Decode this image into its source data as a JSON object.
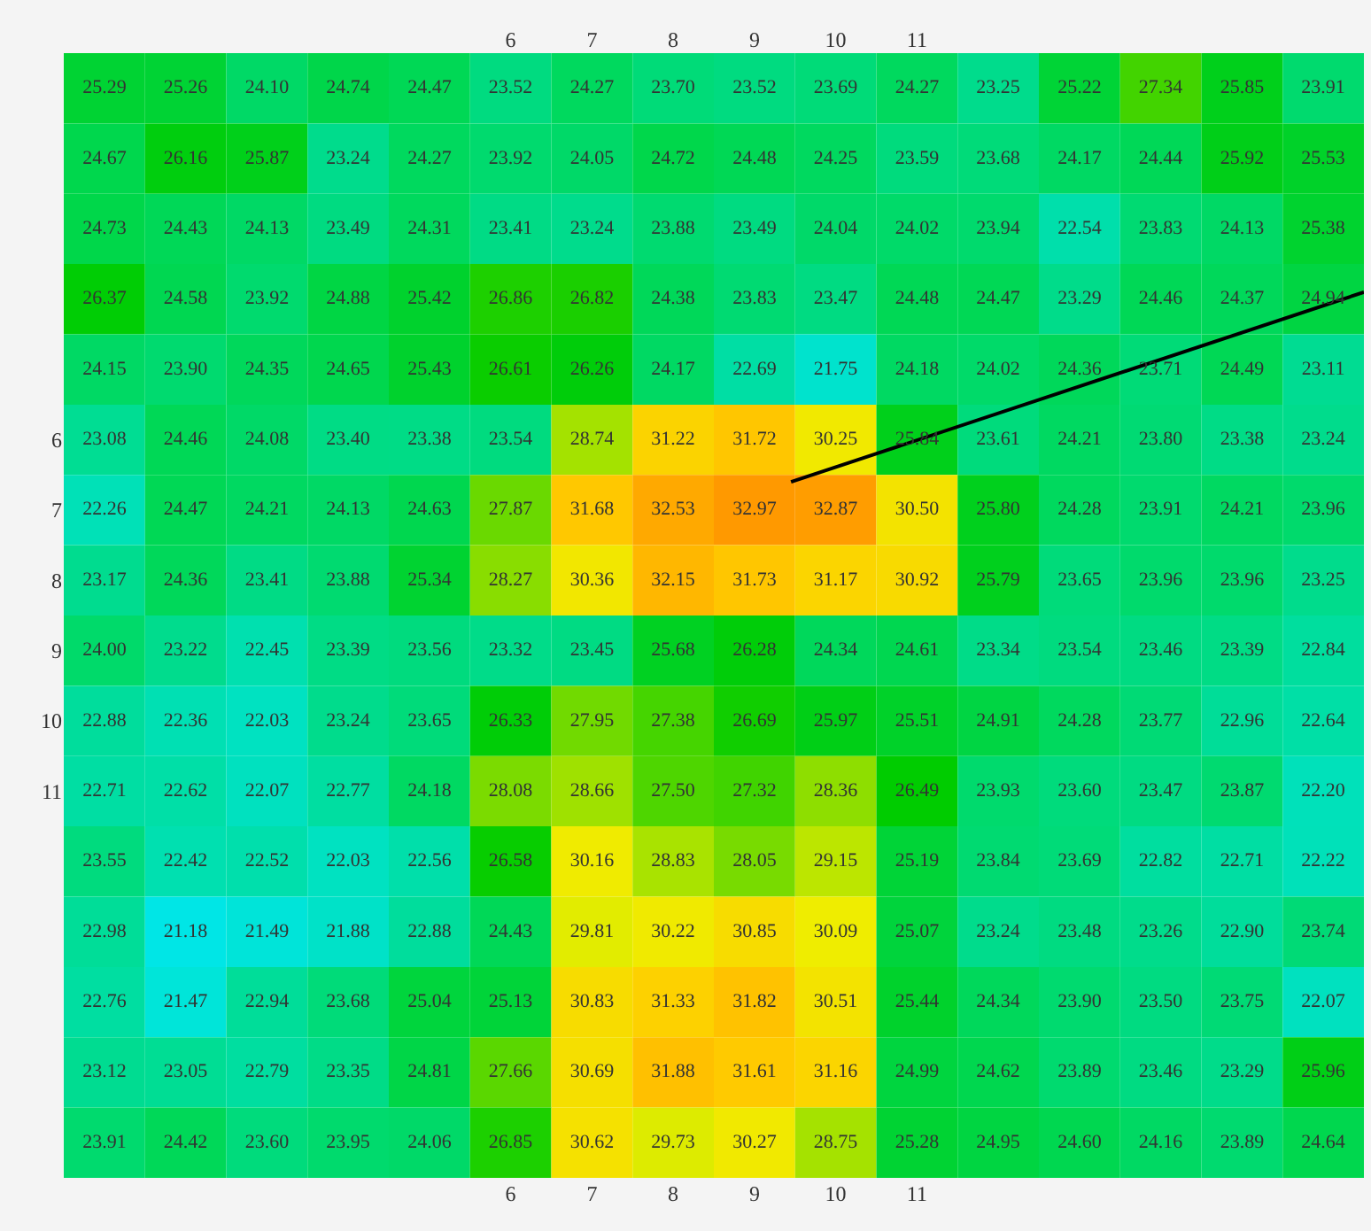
{
  "chart_data": {
    "type": "heatmap",
    "categories": [
      null,
      null,
      null,
      null,
      null,
      "6",
      "7",
      "8",
      "9",
      "10",
      "11",
      null,
      null,
      null,
      null,
      null
    ],
    "y_categories": [
      null,
      null,
      null,
      null,
      null,
      "6",
      "7",
      "8",
      "9",
      "10",
      "11",
      null,
      null,
      null,
      null,
      null
    ],
    "cells": [
      [
        25.29,
        25.26,
        24.1,
        24.74,
        24.47,
        23.52,
        24.27,
        23.7,
        23.52,
        23.69,
        24.27,
        23.25,
        25.22,
        27.34,
        25.85,
        23.91
      ],
      [
        24.67,
        26.16,
        25.87,
        23.24,
        24.27,
        23.92,
        24.05,
        24.72,
        24.48,
        24.25,
        23.59,
        23.68,
        24.17,
        24.44,
        25.92,
        25.53
      ],
      [
        24.73,
        24.43,
        24.13,
        23.49,
        24.31,
        23.41,
        23.24,
        23.88,
        23.49,
        24.04,
        24.02,
        23.94,
        22.54,
        23.83,
        24.13,
        25.38
      ],
      [
        26.37,
        24.58,
        23.92,
        24.88,
        25.42,
        26.86,
        26.82,
        24.38,
        23.83,
        23.47,
        24.48,
        24.47,
        23.29,
        24.46,
        24.37,
        24.94
      ],
      [
        24.15,
        23.9,
        24.35,
        24.65,
        25.43,
        26.61,
        26.26,
        24.17,
        22.69,
        21.75,
        24.18,
        24.02,
        24.36,
        23.71,
        24.49,
        23.11
      ],
      [
        23.08,
        24.46,
        24.08,
        23.4,
        23.38,
        23.54,
        28.74,
        31.22,
        31.72,
        30.25,
        25.84,
        23.61,
        24.21,
        23.8,
        23.38,
        23.24
      ],
      [
        22.26,
        24.47,
        24.21,
        24.13,
        24.63,
        27.87,
        31.68,
        32.53,
        32.97,
        32.87,
        30.5,
        25.8,
        24.28,
        23.91,
        24.21,
        23.96
      ],
      [
        23.17,
        24.36,
        23.41,
        23.88,
        25.34,
        28.27,
        30.36,
        32.15,
        31.73,
        31.17,
        30.92,
        25.79,
        23.65,
        23.96,
        23.96,
        23.25
      ],
      [
        24.0,
        23.22,
        22.45,
        23.39,
        23.56,
        23.32,
        23.45,
        25.68,
        26.28,
        24.34,
        24.61,
        23.34,
        23.54,
        23.46,
        23.39,
        22.84
      ],
      [
        22.88,
        22.36,
        22.03,
        23.24,
        23.65,
        26.33,
        27.95,
        27.38,
        26.69,
        25.97,
        25.51,
        24.91,
        24.28,
        23.77,
        22.96,
        22.64
      ],
      [
        22.71,
        22.62,
        22.07,
        22.77,
        24.18,
        28.08,
        28.66,
        27.5,
        27.32,
        28.36,
        26.49,
        23.93,
        23.6,
        23.47,
        23.87,
        22.2
      ],
      [
        23.55,
        22.42,
        22.52,
        22.03,
        22.56,
        26.58,
        30.16,
        28.83,
        28.05,
        29.15,
        25.19,
        23.84,
        23.69,
        22.82,
        22.71,
        22.22
      ],
      [
        22.98,
        21.18,
        21.49,
        21.88,
        22.88,
        24.43,
        29.81,
        30.22,
        30.85,
        30.09,
        25.07,
        23.24,
        23.48,
        23.26,
        22.9,
        23.74
      ],
      [
        22.76,
        21.47,
        22.94,
        23.68,
        25.04,
        25.13,
        30.83,
        31.33,
        31.82,
        30.51,
        25.44,
        24.34,
        23.9,
        23.5,
        23.75,
        22.07
      ],
      [
        23.12,
        23.05,
        22.79,
        23.35,
        24.81,
        27.66,
        30.69,
        31.88,
        31.61,
        31.16,
        24.99,
        24.62,
        23.89,
        23.46,
        23.29,
        25.96
      ],
      [
        23.91,
        24.42,
        23.6,
        23.95,
        24.06,
        26.85,
        30.62,
        29.73,
        30.27,
        28.75,
        25.28,
        24.95,
        24.6,
        24.16,
        23.89,
        24.64
      ]
    ],
    "cell_labels": [
      [
        "25.29",
        "25.26",
        "24.10",
        "24.74",
        "24.47",
        "23.52",
        "24.27",
        "23.70",
        "23.52",
        "23.69",
        "24.27",
        "23.25",
        "25.22",
        "27.34",
        "25.85",
        "23.91"
      ],
      [
        "24.67",
        "26.16",
        "25.87",
        "23.24",
        "24.27",
        "23.92",
        "24.05",
        "24.72",
        "24.48",
        "24.25",
        "23.59",
        "23.68",
        "24.17",
        "24.44",
        "25.92",
        "25.53"
      ],
      [
        "24.73",
        "24.43",
        "24.13",
        "23.49",
        "24.31",
        "23.41",
        "23.24",
        "23.88",
        "23.49",
        "24.04",
        "24.02",
        "23.94",
        "22.54",
        "23.83",
        "24.13",
        "25.38"
      ],
      [
        "26.37",
        "24.58",
        "23.92",
        "24.88",
        "25.42",
        "26.86",
        "26.82",
        "24.38",
        "23.83",
        "23.47",
        "24.48",
        "24.47",
        "23.29",
        "24.46",
        "24.37",
        "24.94"
      ],
      [
        "24.15",
        "23.90",
        "24.35",
        "24.65",
        "25.43",
        "26.61",
        "26.26",
        "24.17",
        "22.69",
        "21.75",
        "24.18",
        "24.02",
        "24.36",
        "23.71",
        "24.49",
        "23.11"
      ],
      [
        "23.08",
        "24.46",
        "24.08",
        "23.40",
        "23.38",
        "23.54",
        "28.74",
        "31.22",
        "31.72",
        "30.25",
        "25.84",
        "23.61",
        "24.21",
        "23.80",
        "23.38",
        "23.24"
      ],
      [
        "22.26",
        "24.47",
        "24.21",
        "24.13",
        "24.63",
        "27.87",
        "31.68",
        "32.53",
        "32.97",
        "32.87",
        "30.50",
        "25.80",
        "24.28",
        "23.91",
        "24.21",
        "23.96"
      ],
      [
        "23.17",
        "24.36",
        "23.41",
        "23.88",
        "25.34",
        "28.27",
        "30.36",
        "32.15",
        "31.73",
        "31.17",
        "30.92",
        "25.79",
        "23.65",
        "23.96",
        "23.96",
        "23.25"
      ],
      [
        "24.00",
        "23.22",
        "22.45",
        "23.39",
        "23.56",
        "23.32",
        "23.45",
        "25.68",
        "26.28",
        "24.34",
        "24.61",
        "23.34",
        "23.54",
        "23.46",
        "23.39",
        "22.84"
      ],
      [
        "22.88",
        "22.36",
        "22.03",
        "23.24",
        "23.65",
        "26.33",
        "27.95",
        "27.38",
        "26.69",
        "25.97",
        "25.51",
        "24.91",
        "24.28",
        "23.77",
        "22.96",
        "22.64"
      ],
      [
        "22.71",
        "22.62",
        "22.07",
        "22.77",
        "24.18",
        "28.08",
        "28.66",
        "27.50",
        "27.32",
        "28.36",
        "26.49",
        "23.93",
        "23.60",
        "23.47",
        "23.87",
        "22.20"
      ],
      [
        "23.55",
        "22.42",
        "22.52",
        "22.03",
        "22.56",
        "26.58",
        "30.16",
        "28.83",
        "28.05",
        "29.15",
        "25.19",
        "23.84",
        "23.69",
        "22.82",
        "22.71",
        "22.22"
      ],
      [
        "22.98",
        "21.18",
        "21.49",
        "21.88",
        "22.88",
        "24.43",
        "29.81",
        "30.22",
        "30.85",
        "30.09",
        "25.07",
        "23.24",
        "23.48",
        "23.26",
        "22.90",
        "23.74"
      ],
      [
        "22.76",
        "21.47",
        "22.94",
        "23.68",
        "25.04",
        "25.13",
        "30.83",
        "31.33",
        "31.82",
        "30.51",
        "25.44",
        "24.34",
        "23.90",
        "23.50",
        "23.75",
        "22.07"
      ],
      [
        "23.12",
        "23.05",
        "22.79",
        "23.35",
        "24.81",
        "27.66",
        "30.69",
        "31.88",
        "31.61",
        "31.16",
        "24.99",
        "24.62",
        "23.89",
        "23.46",
        "23.29",
        "25.96"
      ],
      [
        "23.91",
        "24.42",
        "23.60",
        "23.95",
        "24.06",
        "26.85",
        "30.62",
        "29.73",
        "30.27",
        "28.75",
        "25.28",
        "24.95",
        "24.60",
        "24.16",
        "23.89",
        "24.64"
      ]
    ]
  }
}
